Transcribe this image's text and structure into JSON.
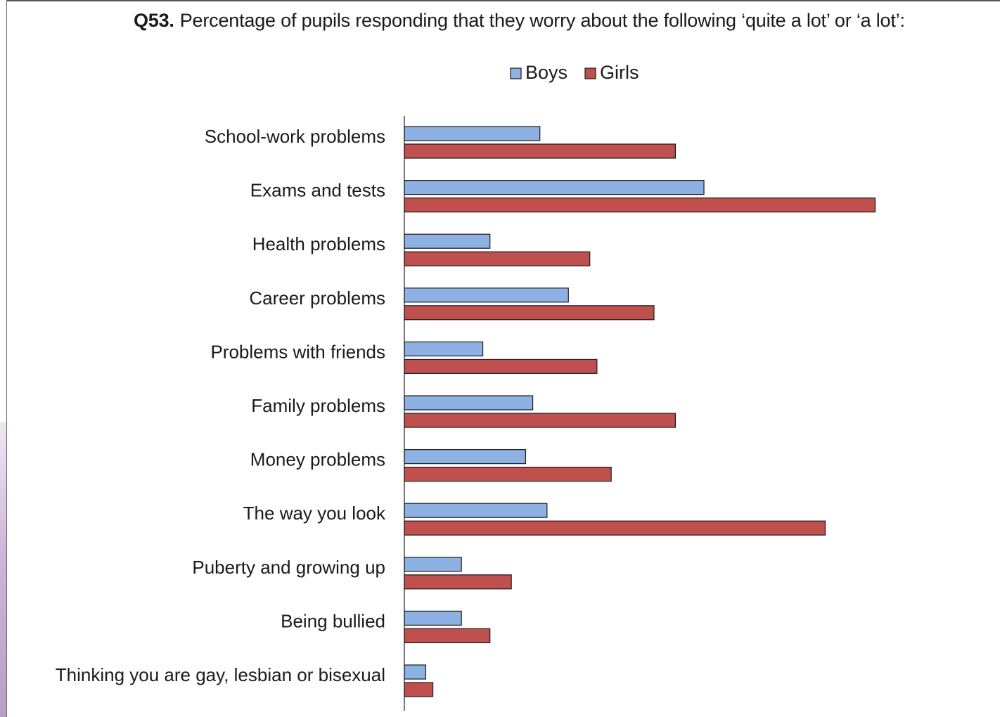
{
  "header": {
    "question_number": "Q53.",
    "question_text": "Percentage of pupils responding that they worry about the following ‘quite a lot’ or ‘a lot’:"
  },
  "colors": {
    "boys": "#8db1e2",
    "girls": "#c0504d",
    "outline": "#1a1a1a"
  },
  "chart_data": {
    "type": "bar",
    "orientation": "horizontal",
    "categories": [
      "School-work problems",
      "Exams and tests",
      "Health problems",
      "Career problems",
      "Problems with friends",
      "Family problems",
      "Money problems",
      "The way you look",
      "Puberty and growing up",
      "Being bullied",
      "Thinking you are gay, lesbian or bisexual"
    ],
    "series": [
      {
        "name": "Boys",
        "values": [
          19,
          42,
          12,
          23,
          11,
          18,
          17,
          20,
          8,
          8,
          3
        ]
      },
      {
        "name": "Girls",
        "values": [
          38,
          66,
          26,
          35,
          27,
          38,
          29,
          59,
          15,
          12,
          4
        ]
      }
    ],
    "xlim": [
      0,
      70
    ],
    "legend": "top-center",
    "grid": false,
    "xlabel": "",
    "ylabel": ""
  }
}
